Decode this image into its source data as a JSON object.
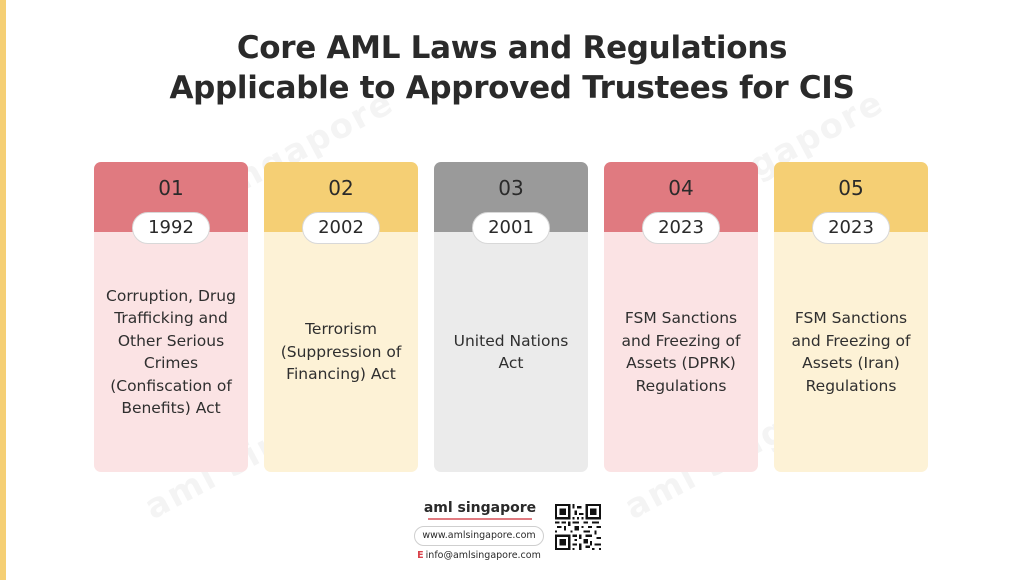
{
  "title_line1": "Core AML Laws and Regulations",
  "title_line2": "Applicable to Approved Trustees for CIS",
  "watermark": "aml singapore",
  "cards": [
    {
      "number": "01",
      "year": "1992",
      "description": "Corruption, Drug Trafficking and Other Serious Crimes (Confiscation of Benefits) Act"
    },
    {
      "number": "02",
      "year": "2002",
      "description": "Terrorism (Suppression of Financing) Act"
    },
    {
      "number": "03",
      "year": "2001",
      "description": "United Nations Act"
    },
    {
      "number": "04",
      "year": "2023",
      "description": "FSM Sanctions and Freezing of Assets (DPRK) Regulations"
    },
    {
      "number": "05",
      "year": "2023",
      "description": "FSM Sanctions and Freezing of Assets (Iran) Regulations"
    }
  ],
  "footer": {
    "brand": "aml singapore",
    "website": "www.amlsingapore.com",
    "email_prefix": "E",
    "email": "info@amlsingapore.com"
  },
  "colors": {
    "red_head": "#e07a80",
    "yellow_head": "#f5cf74",
    "grey_head": "#9a9a9a",
    "red_body": "#fbe3e4",
    "yellow_body": "#fdf2d6",
    "grey_body": "#ebebeb"
  },
  "icons": [
    "qr-code-icon"
  ]
}
